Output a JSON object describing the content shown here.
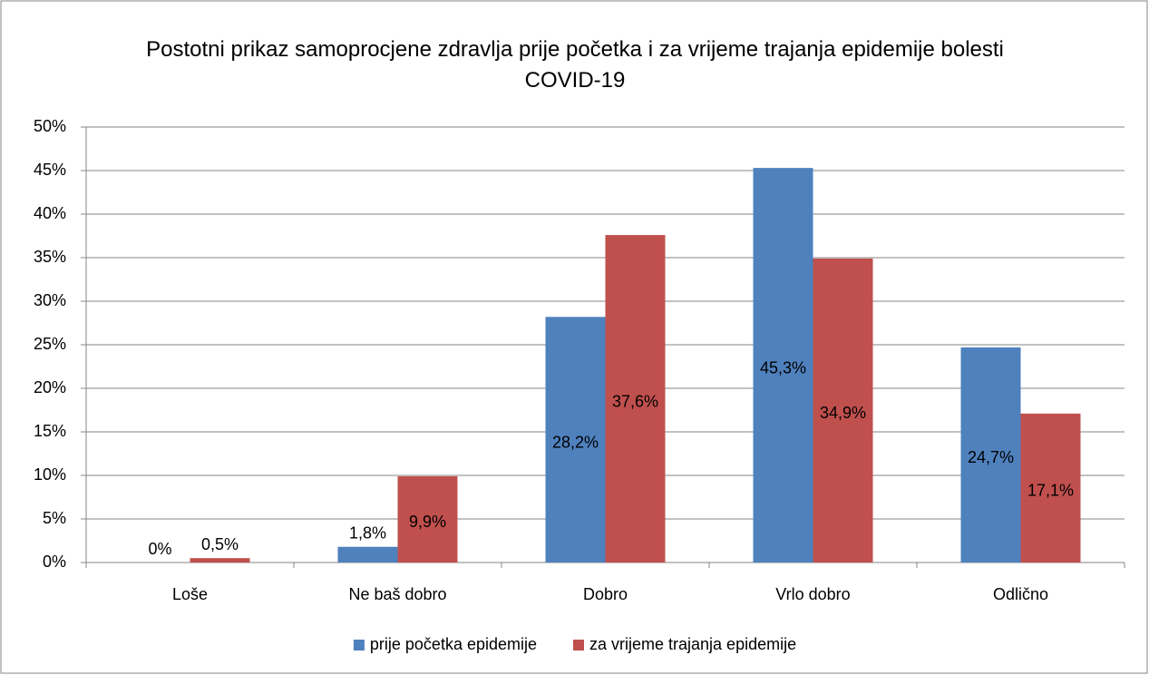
{
  "chart_data": {
    "type": "bar",
    "title": "Postotni prikaz samoprocjene zdravlja prije početka i za vrijeme trajanja epidemije bolesti COVID-19",
    "categories": [
      "Loše",
      "Ne baš dobro",
      "Dobro",
      "Vrlo dobro",
      "Odlično"
    ],
    "series": [
      {
        "name": "prije početka epidemije",
        "color": "#4f81bd",
        "values": [
          0,
          1.8,
          28.2,
          45.3,
          24.7
        ],
        "value_labels": [
          "0%",
          "1,8%",
          "28,2%",
          "45,3%",
          "24,7%"
        ]
      },
      {
        "name": "za vrijeme trajanja epidemije",
        "color": "#c0504d",
        "values": [
          0.5,
          9.9,
          37.6,
          34.9,
          17.1
        ],
        "value_labels": [
          "0,5%",
          "9,9%",
          "37,6%",
          "34,9%",
          "17,1%"
        ]
      }
    ],
    "ylim": [
      0,
      50
    ],
    "yticks": [
      {
        "value": 0,
        "label": "0%"
      },
      {
        "value": 5,
        "label": "5%"
      },
      {
        "value": 10,
        "label": "10%"
      },
      {
        "value": 15,
        "label": "15%"
      },
      {
        "value": 20,
        "label": "20%"
      },
      {
        "value": 25,
        "label": "25%"
      },
      {
        "value": 30,
        "label": "30%"
      },
      {
        "value": 35,
        "label": "35%"
      },
      {
        "value": 40,
        "label": "40%"
      },
      {
        "value": 45,
        "label": "45%"
      },
      {
        "value": 50,
        "label": "50%"
      }
    ],
    "grid": true,
    "legend": "bottom"
  }
}
